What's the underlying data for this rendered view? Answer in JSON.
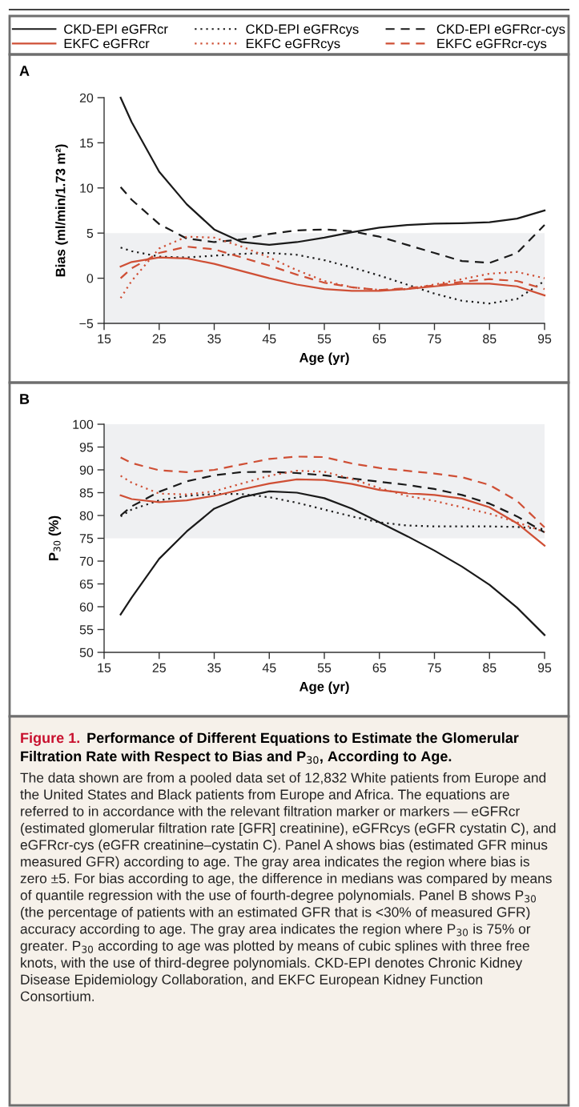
{
  "chart_data": [
    {
      "type": "line",
      "title": "A",
      "xlabel": "Age (yr)",
      "ylabel": "Bias (ml/min/1.73 m²)",
      "xlim": [
        15,
        95
      ],
      "xticks": [
        15,
        25,
        35,
        45,
        55,
        65,
        75,
        85,
        95
      ],
      "ylim": [
        -5,
        20
      ],
      "yticks": [
        {
          "value": -5,
          "label": "−5"
        },
        0,
        5,
        10,
        15,
        20
      ],
      "grid": false,
      "legend": "top",
      "x": [
        18,
        20,
        25,
        30,
        35,
        40,
        45,
        50,
        55,
        60,
        65,
        70,
        75,
        80,
        85,
        90,
        95
      ],
      "bands": [
        {
          "axis": "y",
          "from": -5,
          "to": 5,
          "color": "#eff0f2"
        }
      ],
      "series": [
        {
          "name": "CKD-EPI eGFRcr",
          "color": "#1a1a1a",
          "line_style": "solid",
          "values": [
            20,
            17.3,
            11.8,
            8.2,
            5.4,
            4.0,
            3.7,
            4.0,
            4.5,
            5.1,
            5.6,
            5.9,
            6.05,
            6.1,
            6.2,
            6.6,
            7.5
          ]
        },
        {
          "name": "CKD-EPI eGFRcys",
          "color": "#1a1a1a",
          "line_style": "dotted",
          "values": [
            3.4,
            3.0,
            2.4,
            2.3,
            2.5,
            2.7,
            2.8,
            2.6,
            2.0,
            1.2,
            0.3,
            -0.7,
            -1.7,
            -2.5,
            -2.8,
            -2.3,
            -0.3
          ]
        },
        {
          "name": "CKD-EPI eGFRcr-cys",
          "color": "#1a1a1a",
          "line_style": "dashed",
          "values": [
            10.1,
            8.7,
            6.0,
            4.4,
            4.0,
            4.3,
            4.9,
            5.3,
            5.4,
            5.2,
            4.6,
            3.7,
            2.8,
            1.9,
            1.7,
            2.8,
            5.9
          ]
        },
        {
          "name": "EKFC eGFRcr",
          "color": "#cf4f35",
          "line_style": "solid",
          "values": [
            1.3,
            1.8,
            2.3,
            2.2,
            1.6,
            0.8,
            0.0,
            -0.7,
            -1.2,
            -1.4,
            -1.4,
            -1.2,
            -0.9,
            -0.6,
            -0.6,
            -0.9,
            -1.9
          ]
        },
        {
          "name": "EKFC eGFRcys",
          "color": "#cf4f35",
          "line_style": "dotted",
          "values": [
            -2.2,
            -0.3,
            3.3,
            4.6,
            4.5,
            3.5,
            2.3,
            0.9,
            -0.3,
            -1.0,
            -1.3,
            -1.2,
            -0.7,
            -0.1,
            0.5,
            0.7,
            0.0
          ]
        },
        {
          "name": "EKFC eGFRcr-cys",
          "color": "#cf4f35",
          "line_style": "dashed",
          "values": [
            0.0,
            1.1,
            2.8,
            3.5,
            3.2,
            2.3,
            1.4,
            0.4,
            -0.5,
            -1.0,
            -1.3,
            -1.1,
            -0.8,
            -0.4,
            -0.1,
            -0.3,
            -1.2
          ]
        }
      ]
    },
    {
      "type": "line",
      "title": "B",
      "xlabel": "Age (yr)",
      "ylabel": "P$_{30}$ (%)",
      "xlim": [
        15,
        95
      ],
      "xticks": [
        15,
        25,
        35,
        45,
        55,
        65,
        75,
        85,
        95
      ],
      "ylim": [
        50,
        100
      ],
      "yticks": [
        50,
        55,
        60,
        65,
        70,
        75,
        80,
        85,
        90,
        95,
        100
      ],
      "grid": false,
      "x": [
        18,
        20,
        25,
        30,
        35,
        40,
        45,
        50,
        55,
        60,
        65,
        70,
        75,
        80,
        85,
        90,
        95
      ],
      "bands": [
        {
          "axis": "y",
          "from": 75,
          "to": 100,
          "color": "#eff0f2"
        }
      ],
      "series": [
        {
          "color": "#1a1a1a",
          "line_style": "solid",
          "values": [
            58.3,
            62,
            70.5,
            76.5,
            81.5,
            84,
            85.3,
            85.0,
            83.8,
            81.5,
            78.5,
            75.5,
            72.3,
            68.8,
            64.8,
            59.8,
            53.8
          ]
        },
        {
          "color": "#1a1a1a",
          "line_style": "dotted",
          "values": [
            79.8,
            81.3,
            83.3,
            84.3,
            84.7,
            84.7,
            84,
            82.8,
            81.3,
            79.8,
            78.5,
            77.8,
            77.6,
            77.6,
            77.6,
            77.5,
            77.0
          ]
        },
        {
          "color": "#1a1a1a",
          "line_style": "dashed",
          "values": [
            80,
            82,
            85.2,
            87.5,
            88.8,
            89.5,
            89.6,
            89.3,
            88.8,
            88.1,
            87.4,
            86.7,
            85.8,
            84.5,
            82.6,
            79.8,
            76.3
          ]
        },
        {
          "color": "#cf4f35",
          "line_style": "solid",
          "values": [
            84.4,
            83.6,
            82.9,
            83.3,
            84.3,
            85.7,
            87,
            87.9,
            87.8,
            86.9,
            85.6,
            84.9,
            84.5,
            83.7,
            81.8,
            78.3,
            73.4
          ]
        },
        {
          "color": "#cf4f35",
          "line_style": "dotted",
          "values": [
            88.7,
            87.2,
            84.8,
            84.6,
            85.3,
            87,
            88.7,
            89.8,
            89.6,
            88,
            86,
            84.3,
            83.2,
            81.8,
            80.4,
            78.5,
            76.4
          ]
        },
        {
          "color": "#cf4f35",
          "line_style": "dashed",
          "values": [
            92.7,
            91.5,
            89.9,
            89.5,
            90.0,
            91.2,
            92.4,
            92.9,
            92.8,
            91.4,
            90.4,
            89.8,
            89.2,
            88.4,
            86.7,
            83.2,
            77.4
          ]
        }
      ],
      "annotations": [
        "Figure 1.",
        "Performance of Different Equations to Estimate the Glomerular Filtration Rate with Respect to Bias and P$_{30}$, According to Age.",
        "The data shown are from a pooled data set of 12,832 White patients from Europe and the United States and Black patients from Europe and Africa. The equations are referred to in accordance with the relevant filtration marker or markers — eGFRcr (estimated glomerular filtration rate [GFR] creatinine), eGFRcys (eGFR cystatin C), and eGFRcr-cys (eGFR creatinine–cystatin C). Panel A shows bias (estimated GFR minus measured GFR) according to age. The gray area indicates the region where bias is zero ±5. For bias according to age, the difference in medians was compared by means of quantile regression with the use of fourth-degree polynomials. Panel B shows P$_{30}$ (the percentage of patients with an estimated GFR that is <30% of measured GFR) accuracy according to age. The gray area indicates the region where P$_{30}$ is 75% or greater. P$_{30}$ according to age was plotted by means of cubic splines with three free knots, with the use of third-degree polynomials. CKD-EPI denotes Chronic Kidney Disease Epidemiology Collaboration, and EKFC European Kidney Function Consortium."
      ]
    }
  ]
}
